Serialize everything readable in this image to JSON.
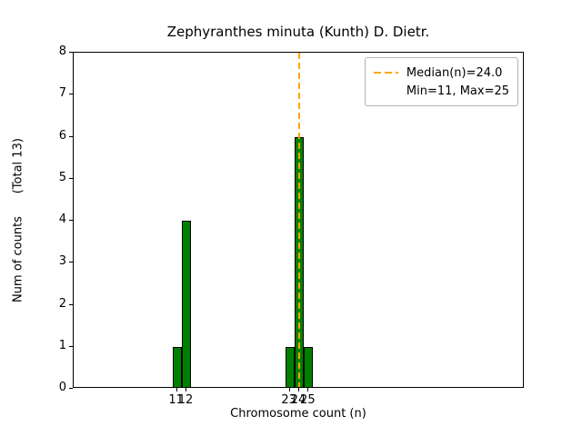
{
  "chart_data": {
    "type": "bar",
    "title": "Zephyranthes minuta (Kunth) D. Dietr.",
    "xlabel": "Chromosome count (n)",
    "ylabel": "Num of counts      (Total 13)",
    "x": [
      11,
      12,
      23,
      24,
      25
    ],
    "values": [
      1,
      4,
      1,
      6,
      1
    ],
    "total_counts": 13,
    "median": 24.0,
    "min": 11,
    "max": 25,
    "xlim": [
      0,
      48
    ],
    "ylim": [
      0,
      8
    ],
    "xticks": [
      11,
      12,
      23,
      24,
      25
    ],
    "yticks": [
      0,
      1,
      2,
      3,
      4,
      5,
      6,
      7,
      8
    ],
    "grid": false,
    "legend_position": "upper right",
    "legend": [
      "Median(n)=24.0",
      "Min=11, Max=25"
    ],
    "bar_color": "#008000",
    "bar_edge_color": "#000000",
    "median_line_color": "#ffa500",
    "axis_color": "#000000"
  }
}
